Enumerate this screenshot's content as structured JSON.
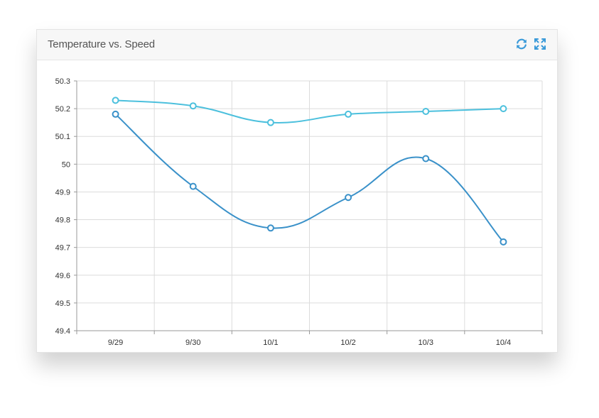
{
  "panel": {
    "title": "Temperature vs. Speed",
    "tools": [
      {
        "name": "refresh-icon"
      },
      {
        "name": "expand-icon"
      }
    ]
  },
  "colors": {
    "series1": "#4cc0dd",
    "series2": "#3a91c9",
    "grid": "#dcdcdc",
    "tool": "#3a9ad9"
  },
  "chart_data": {
    "type": "line",
    "title": "Temperature vs. Speed",
    "xlabel": "",
    "ylabel": "",
    "categories": [
      "9/29",
      "9/30",
      "10/1",
      "10/2",
      "10/3",
      "10/4"
    ],
    "ylim": [
      49.4,
      50.3
    ],
    "yticks": [
      "49.4",
      "49.5",
      "49.6",
      "49.7",
      "49.8",
      "49.9",
      "50",
      "50.1",
      "50.2",
      "50.3"
    ],
    "grid": true,
    "legend": "none",
    "series": [
      {
        "values": [
          50.23,
          50.21,
          50.15,
          50.18,
          50.19,
          50.2
        ]
      },
      {
        "values": [
          50.18,
          49.92,
          49.77,
          49.88,
          50.02,
          49.72
        ]
      }
    ]
  }
}
